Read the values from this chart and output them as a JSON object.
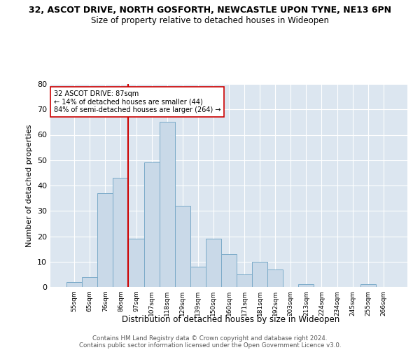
{
  "title1": "32, ASCOT DRIVE, NORTH GOSFORTH, NEWCASTLE UPON TYNE, NE13 6PN",
  "title2": "Size of property relative to detached houses in Wideopen",
  "xlabel": "Distribution of detached houses by size in Wideopen",
  "ylabel": "Number of detached properties",
  "categories": [
    "55sqm",
    "65sqm",
    "76sqm",
    "86sqm",
    "97sqm",
    "107sqm",
    "118sqm",
    "129sqm",
    "139sqm",
    "150sqm",
    "160sqm",
    "171sqm",
    "181sqm",
    "192sqm",
    "203sqm",
    "213sqm",
    "224sqm",
    "234sqm",
    "245sqm",
    "255sqm",
    "266sqm"
  ],
  "values": [
    2,
    4,
    37,
    43,
    19,
    49,
    65,
    32,
    8,
    19,
    13,
    5,
    10,
    7,
    0,
    1,
    0,
    0,
    0,
    1,
    0
  ],
  "bar_color": "#c9d9e8",
  "bar_edge_color": "#7aaac8",
  "vline_color": "#cc0000",
  "annotation_line1": "32 ASCOT DRIVE: 87sqm",
  "annotation_line2": "← 14% of detached houses are smaller (44)",
  "annotation_line3": "84% of semi-detached houses are larger (264) →",
  "annotation_box_color": "#ffffff",
  "annotation_box_edge_color": "#cc0000",
  "ylim": [
    0,
    80
  ],
  "yticks": [
    0,
    10,
    20,
    30,
    40,
    50,
    60,
    70,
    80
  ],
  "background_color": "#dce6f0",
  "footer1": "Contains HM Land Registry data © Crown copyright and database right 2024.",
  "footer2": "Contains public sector information licensed under the Open Government Licence v3.0."
}
